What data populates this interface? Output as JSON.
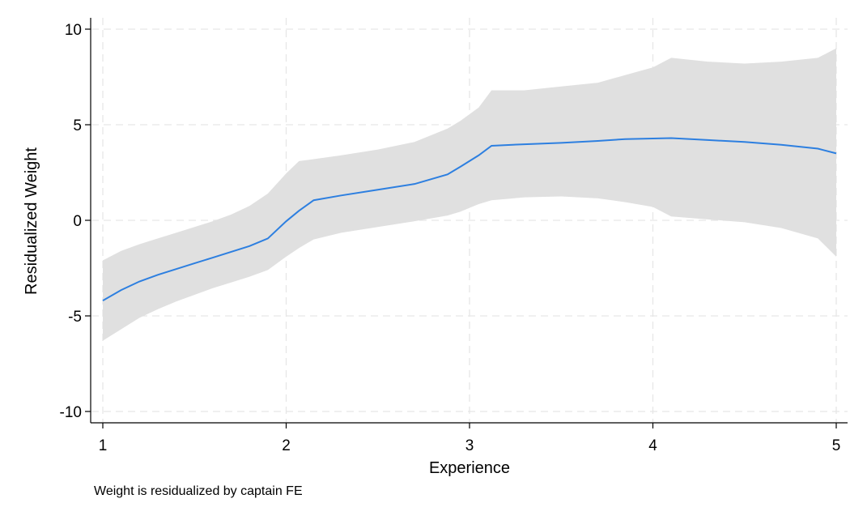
{
  "chart_data": {
    "type": "area",
    "xlabel": "Experience",
    "ylabel": "Residualized Weight",
    "note": "Weight is residualized by captain FE",
    "xlim": [
      1,
      5
    ],
    "ylim": [
      -10,
      10
    ],
    "x_ticks": [
      1,
      2,
      3,
      4,
      5
    ],
    "y_ticks": [
      -10,
      -5,
      0,
      5,
      10
    ],
    "grid": true,
    "legend": "none",
    "colors": {
      "line": "#2d7fe0",
      "band": "#e0e0e0",
      "grid": "#e6e6e6"
    },
    "series": [
      {
        "kind": "line",
        "x": [
          1.0,
          1.1,
          1.2,
          1.3,
          1.4,
          1.5,
          1.6,
          1.7,
          1.8,
          1.9,
          2.0,
          2.07,
          2.15,
          2.3,
          2.5,
          2.7,
          2.88,
          2.95,
          3.05,
          3.12,
          3.3,
          3.5,
          3.7,
          3.85,
          4.0,
          4.1,
          4.3,
          4.5,
          4.7,
          4.9,
          5.0
        ],
        "y": [
          -4.2,
          -3.65,
          -3.2,
          -2.85,
          -2.55,
          -2.25,
          -1.95,
          -1.65,
          -1.35,
          -0.95,
          -0.05,
          0.5,
          1.05,
          1.3,
          1.6,
          1.9,
          2.4,
          2.8,
          3.4,
          3.9,
          3.98,
          4.05,
          4.15,
          4.25,
          4.28,
          4.3,
          4.2,
          4.1,
          3.95,
          3.75,
          3.5
        ]
      },
      {
        "kind": "band",
        "x": [
          1.0,
          1.1,
          1.2,
          1.3,
          1.4,
          1.5,
          1.6,
          1.7,
          1.8,
          1.9,
          2.0,
          2.07,
          2.15,
          2.3,
          2.5,
          2.7,
          2.88,
          2.95,
          3.05,
          3.12,
          3.3,
          3.5,
          3.7,
          3.85,
          4.0,
          4.1,
          4.3,
          4.5,
          4.7,
          4.9,
          5.0
        ],
        "upper": [
          -2.1,
          -1.6,
          -1.25,
          -0.95,
          -0.65,
          -0.35,
          -0.05,
          0.3,
          0.75,
          1.4,
          2.45,
          3.1,
          3.2,
          3.4,
          3.7,
          4.1,
          4.8,
          5.2,
          5.9,
          6.8,
          6.8,
          7.0,
          7.2,
          7.6,
          8.0,
          8.5,
          8.3,
          8.2,
          8.3,
          8.5,
          9.0
        ]
      },
      {
        "kind": "band_lower",
        "lower": [
          -6.3,
          -5.7,
          -5.1,
          -4.65,
          -4.25,
          -3.9,
          -3.55,
          -3.25,
          -2.95,
          -2.6,
          -1.9,
          -1.45,
          -1.0,
          -0.65,
          -0.35,
          -0.05,
          0.25,
          0.45,
          0.85,
          1.05,
          1.2,
          1.25,
          1.15,
          0.95,
          0.7,
          0.2,
          0.05,
          -0.1,
          -0.4,
          -0.95,
          -1.9
        ]
      }
    ]
  }
}
